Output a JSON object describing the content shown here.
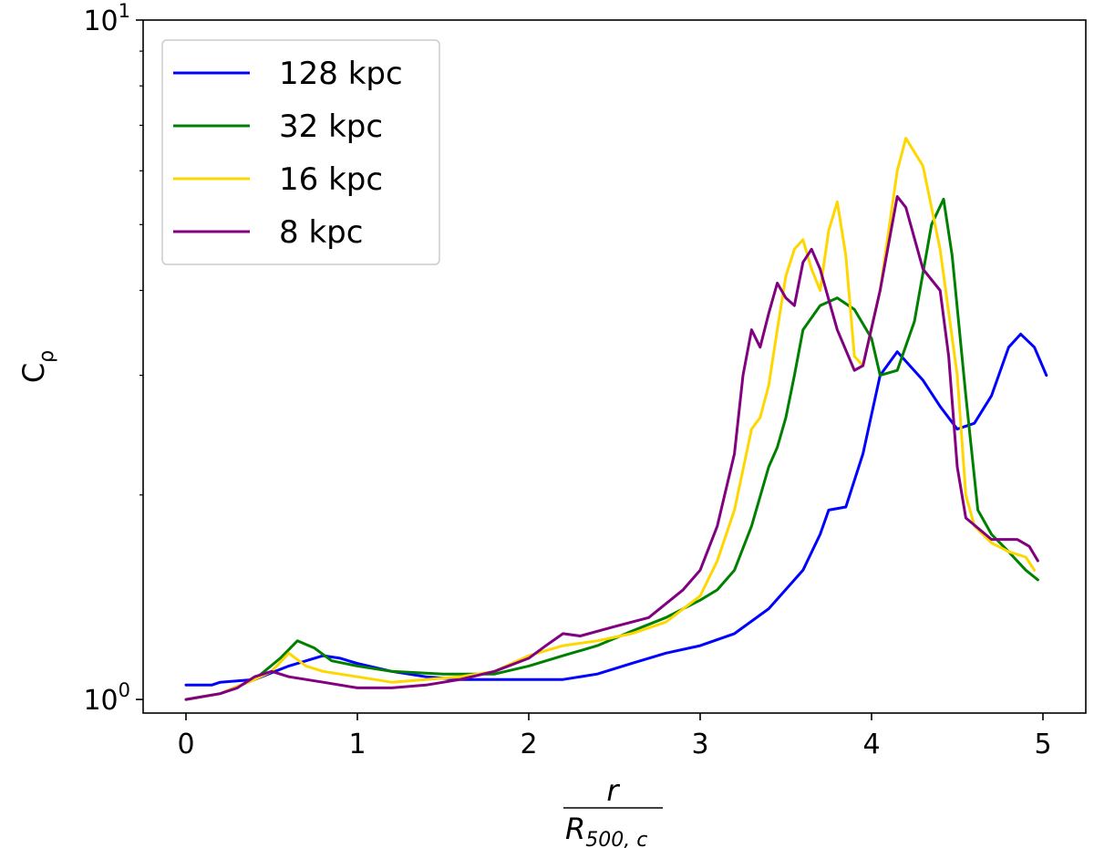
{
  "chart_data": {
    "type": "line",
    "title": "",
    "xlabel": {
      "numerator": "r",
      "denominator_base": "R",
      "denominator_sub": "500, c"
    },
    "ylabel": {
      "base": "C",
      "sub": "ρ"
    },
    "xlim": [
      -0.25,
      5.25
    ],
    "ylim": [
      0.955,
      10
    ],
    "yscale": "log",
    "x_ticks": [
      0,
      1,
      2,
      3,
      4,
      5
    ],
    "x_tick_labels": [
      "0",
      "1",
      "2",
      "3",
      "4",
      "5"
    ],
    "y_ticks": [
      {
        "value": 1,
        "base": "10",
        "exp": "0"
      },
      {
        "value": 10,
        "base": "10",
        "exp": "1"
      }
    ],
    "legend": {
      "position": "top-left"
    },
    "series": [
      {
        "name": "128 kpc",
        "color": "#0000ff",
        "points": [
          [
            0,
            1.05
          ],
          [
            0.15,
            1.05
          ],
          [
            0.2,
            1.06
          ],
          [
            0.4,
            1.07
          ],
          [
            0.6,
            1.12
          ],
          [
            0.8,
            1.16
          ],
          [
            0.9,
            1.15
          ],
          [
            1.0,
            1.13
          ],
          [
            1.2,
            1.1
          ],
          [
            1.4,
            1.08
          ],
          [
            1.6,
            1.07
          ],
          [
            1.8,
            1.07
          ],
          [
            2.2,
            1.07
          ],
          [
            2.4,
            1.09
          ],
          [
            2.6,
            1.13
          ],
          [
            2.8,
            1.17
          ],
          [
            3.0,
            1.2
          ],
          [
            3.2,
            1.25
          ],
          [
            3.4,
            1.36
          ],
          [
            3.6,
            1.55
          ],
          [
            3.7,
            1.75
          ],
          [
            3.75,
            1.9
          ],
          [
            3.85,
            1.92
          ],
          [
            3.95,
            2.3
          ],
          [
            4.05,
            3.0
          ],
          [
            4.15,
            3.25
          ],
          [
            4.3,
            2.95
          ],
          [
            4.4,
            2.7
          ],
          [
            4.5,
            2.5
          ],
          [
            4.6,
            2.55
          ],
          [
            4.7,
            2.8
          ],
          [
            4.8,
            3.3
          ],
          [
            4.87,
            3.45
          ],
          [
            4.95,
            3.3
          ],
          [
            5.02,
            3.0
          ]
        ]
      },
      {
        "name": "32 kpc",
        "color": "#008000",
        "points": [
          [
            0,
            1.0
          ],
          [
            0.2,
            1.02
          ],
          [
            0.4,
            1.07
          ],
          [
            0.55,
            1.15
          ],
          [
            0.65,
            1.22
          ],
          [
            0.75,
            1.19
          ],
          [
            0.85,
            1.14
          ],
          [
            1.0,
            1.12
          ],
          [
            1.2,
            1.1
          ],
          [
            1.5,
            1.09
          ],
          [
            1.8,
            1.09
          ],
          [
            2.0,
            1.12
          ],
          [
            2.2,
            1.16
          ],
          [
            2.4,
            1.2
          ],
          [
            2.6,
            1.26
          ],
          [
            2.8,
            1.32
          ],
          [
            3.0,
            1.4
          ],
          [
            3.1,
            1.45
          ],
          [
            3.2,
            1.55
          ],
          [
            3.3,
            1.8
          ],
          [
            3.4,
            2.2
          ],
          [
            3.45,
            2.35
          ],
          [
            3.5,
            2.6
          ],
          [
            3.55,
            3.0
          ],
          [
            3.6,
            3.5
          ],
          [
            3.7,
            3.8
          ],
          [
            3.8,
            3.9
          ],
          [
            3.9,
            3.75
          ],
          [
            4.0,
            3.4
          ],
          [
            4.05,
            3.0
          ],
          [
            4.15,
            3.05
          ],
          [
            4.25,
            3.6
          ],
          [
            4.35,
            5.0
          ],
          [
            4.42,
            5.45
          ],
          [
            4.47,
            4.5
          ],
          [
            4.55,
            2.8
          ],
          [
            4.62,
            1.9
          ],
          [
            4.7,
            1.75
          ],
          [
            4.8,
            1.65
          ],
          [
            4.9,
            1.55
          ],
          [
            4.97,
            1.5
          ]
        ]
      },
      {
        "name": "16 kpc",
        "color": "#ffd700",
        "points": [
          [
            0,
            1.0
          ],
          [
            0.2,
            1.02
          ],
          [
            0.4,
            1.07
          ],
          [
            0.5,
            1.1
          ],
          [
            0.6,
            1.17
          ],
          [
            0.7,
            1.12
          ],
          [
            0.8,
            1.1
          ],
          [
            1.0,
            1.08
          ],
          [
            1.2,
            1.06
          ],
          [
            1.4,
            1.07
          ],
          [
            1.6,
            1.08
          ],
          [
            1.8,
            1.1
          ],
          [
            2.0,
            1.16
          ],
          [
            2.2,
            1.2
          ],
          [
            2.4,
            1.22
          ],
          [
            2.6,
            1.25
          ],
          [
            2.8,
            1.3
          ],
          [
            3.0,
            1.42
          ],
          [
            3.1,
            1.6
          ],
          [
            3.2,
            1.9
          ],
          [
            3.3,
            2.5
          ],
          [
            3.35,
            2.6
          ],
          [
            3.4,
            2.9
          ],
          [
            3.45,
            3.5
          ],
          [
            3.5,
            4.2
          ],
          [
            3.55,
            4.6
          ],
          [
            3.6,
            4.75
          ],
          [
            3.65,
            4.3
          ],
          [
            3.7,
            4.0
          ],
          [
            3.75,
            4.9
          ],
          [
            3.8,
            5.4
          ],
          [
            3.85,
            4.5
          ],
          [
            3.9,
            3.2
          ],
          [
            3.95,
            3.1
          ],
          [
            4.05,
            4.0
          ],
          [
            4.15,
            6.0
          ],
          [
            4.2,
            6.7
          ],
          [
            4.3,
            6.1
          ],
          [
            4.4,
            4.6
          ],
          [
            4.5,
            3.0
          ],
          [
            4.55,
            2.0
          ],
          [
            4.6,
            1.8
          ],
          [
            4.7,
            1.7
          ],
          [
            4.8,
            1.65
          ],
          [
            4.9,
            1.62
          ],
          [
            4.95,
            1.55
          ]
        ]
      },
      {
        "name": "8 kpc",
        "color": "#800080",
        "points": [
          [
            0,
            1.0
          ],
          [
            0.2,
            1.02
          ],
          [
            0.3,
            1.04
          ],
          [
            0.4,
            1.08
          ],
          [
            0.5,
            1.1
          ],
          [
            0.6,
            1.08
          ],
          [
            0.7,
            1.07
          ],
          [
            0.8,
            1.06
          ],
          [
            1.0,
            1.04
          ],
          [
            1.2,
            1.04
          ],
          [
            1.4,
            1.05
          ],
          [
            1.6,
            1.07
          ],
          [
            1.8,
            1.1
          ],
          [
            2.0,
            1.15
          ],
          [
            2.1,
            1.2
          ],
          [
            2.2,
            1.25
          ],
          [
            2.3,
            1.24
          ],
          [
            2.5,
            1.28
          ],
          [
            2.7,
            1.32
          ],
          [
            2.9,
            1.45
          ],
          [
            3.0,
            1.55
          ],
          [
            3.1,
            1.8
          ],
          [
            3.2,
            2.3
          ],
          [
            3.25,
            3.0
          ],
          [
            3.3,
            3.5
          ],
          [
            3.35,
            3.3
          ],
          [
            3.4,
            3.7
          ],
          [
            3.45,
            4.1
          ],
          [
            3.5,
            3.9
          ],
          [
            3.55,
            3.8
          ],
          [
            3.6,
            4.4
          ],
          [
            3.65,
            4.6
          ],
          [
            3.7,
            4.3
          ],
          [
            3.8,
            3.5
          ],
          [
            3.9,
            3.05
          ],
          [
            3.95,
            3.1
          ],
          [
            4.05,
            4.0
          ],
          [
            4.15,
            5.5
          ],
          [
            4.2,
            5.3
          ],
          [
            4.3,
            4.3
          ],
          [
            4.4,
            4.0
          ],
          [
            4.45,
            3.2
          ],
          [
            4.5,
            2.2
          ],
          [
            4.55,
            1.85
          ],
          [
            4.7,
            1.72
          ],
          [
            4.85,
            1.72
          ],
          [
            4.92,
            1.68
          ],
          [
            4.97,
            1.6
          ]
        ]
      }
    ]
  }
}
